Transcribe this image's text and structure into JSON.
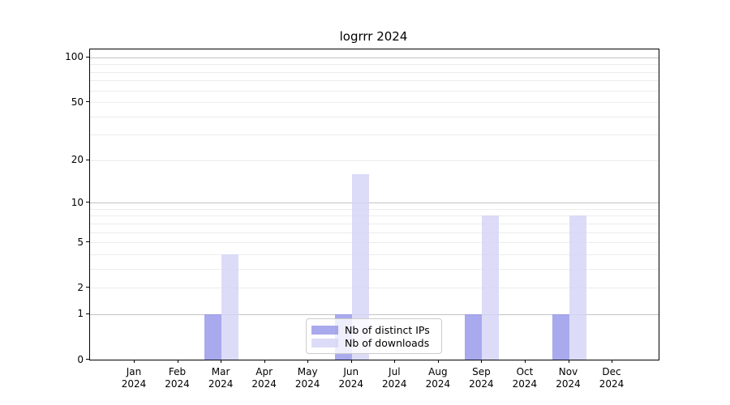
{
  "figure": {
    "title": "logrrr 2024",
    "background": "#ffffff"
  },
  "chart_data": {
    "type": "bar",
    "title": "logrrr 2024",
    "categories": [
      "Jan 2024",
      "Feb 2024",
      "Mar 2024",
      "Apr 2024",
      "May 2024",
      "Jun 2024",
      "Jul 2024",
      "Aug 2024",
      "Sep 2024",
      "Oct 2024",
      "Nov 2024",
      "Dec 2024"
    ],
    "series": [
      {
        "name": "Nb of distinct IPs",
        "color": "#a8a8ef",
        "fill": "rgba(147,147,234,0.8)",
        "values": [
          0,
          0,
          1,
          0,
          0,
          1,
          0,
          0,
          1,
          0,
          1,
          0
        ]
      },
      {
        "name": "Nb of downloads",
        "color": "#dcdcf8",
        "fill": "rgba(212,212,246,0.82)",
        "values": [
          0,
          0,
          4,
          0,
          0,
          16,
          0,
          0,
          8,
          0,
          8,
          0
        ]
      }
    ],
    "xlabel": "",
    "ylabel": "",
    "yscale": "log1p",
    "ylim": [
      0,
      113
    ],
    "y_tick_labels": [
      0,
      1,
      2,
      5,
      10,
      20,
      50,
      100
    ],
    "y_major_gridlines": [
      1,
      10,
      100
    ],
    "y_minor_gridlines": [
      2,
      3,
      4,
      5,
      6,
      7,
      8,
      9,
      20,
      30,
      40,
      50,
      60,
      70,
      80,
      90
    ],
    "grid": true,
    "legend": {
      "position": "lower center",
      "entries": [
        "Nb of distinct IPs",
        "Nb of downloads"
      ]
    }
  },
  "colors": {
    "major_grid": "#c3c3c3",
    "minor_grid": "#ececec",
    "axis": "#000000",
    "legend_border": "#cccccc"
  }
}
